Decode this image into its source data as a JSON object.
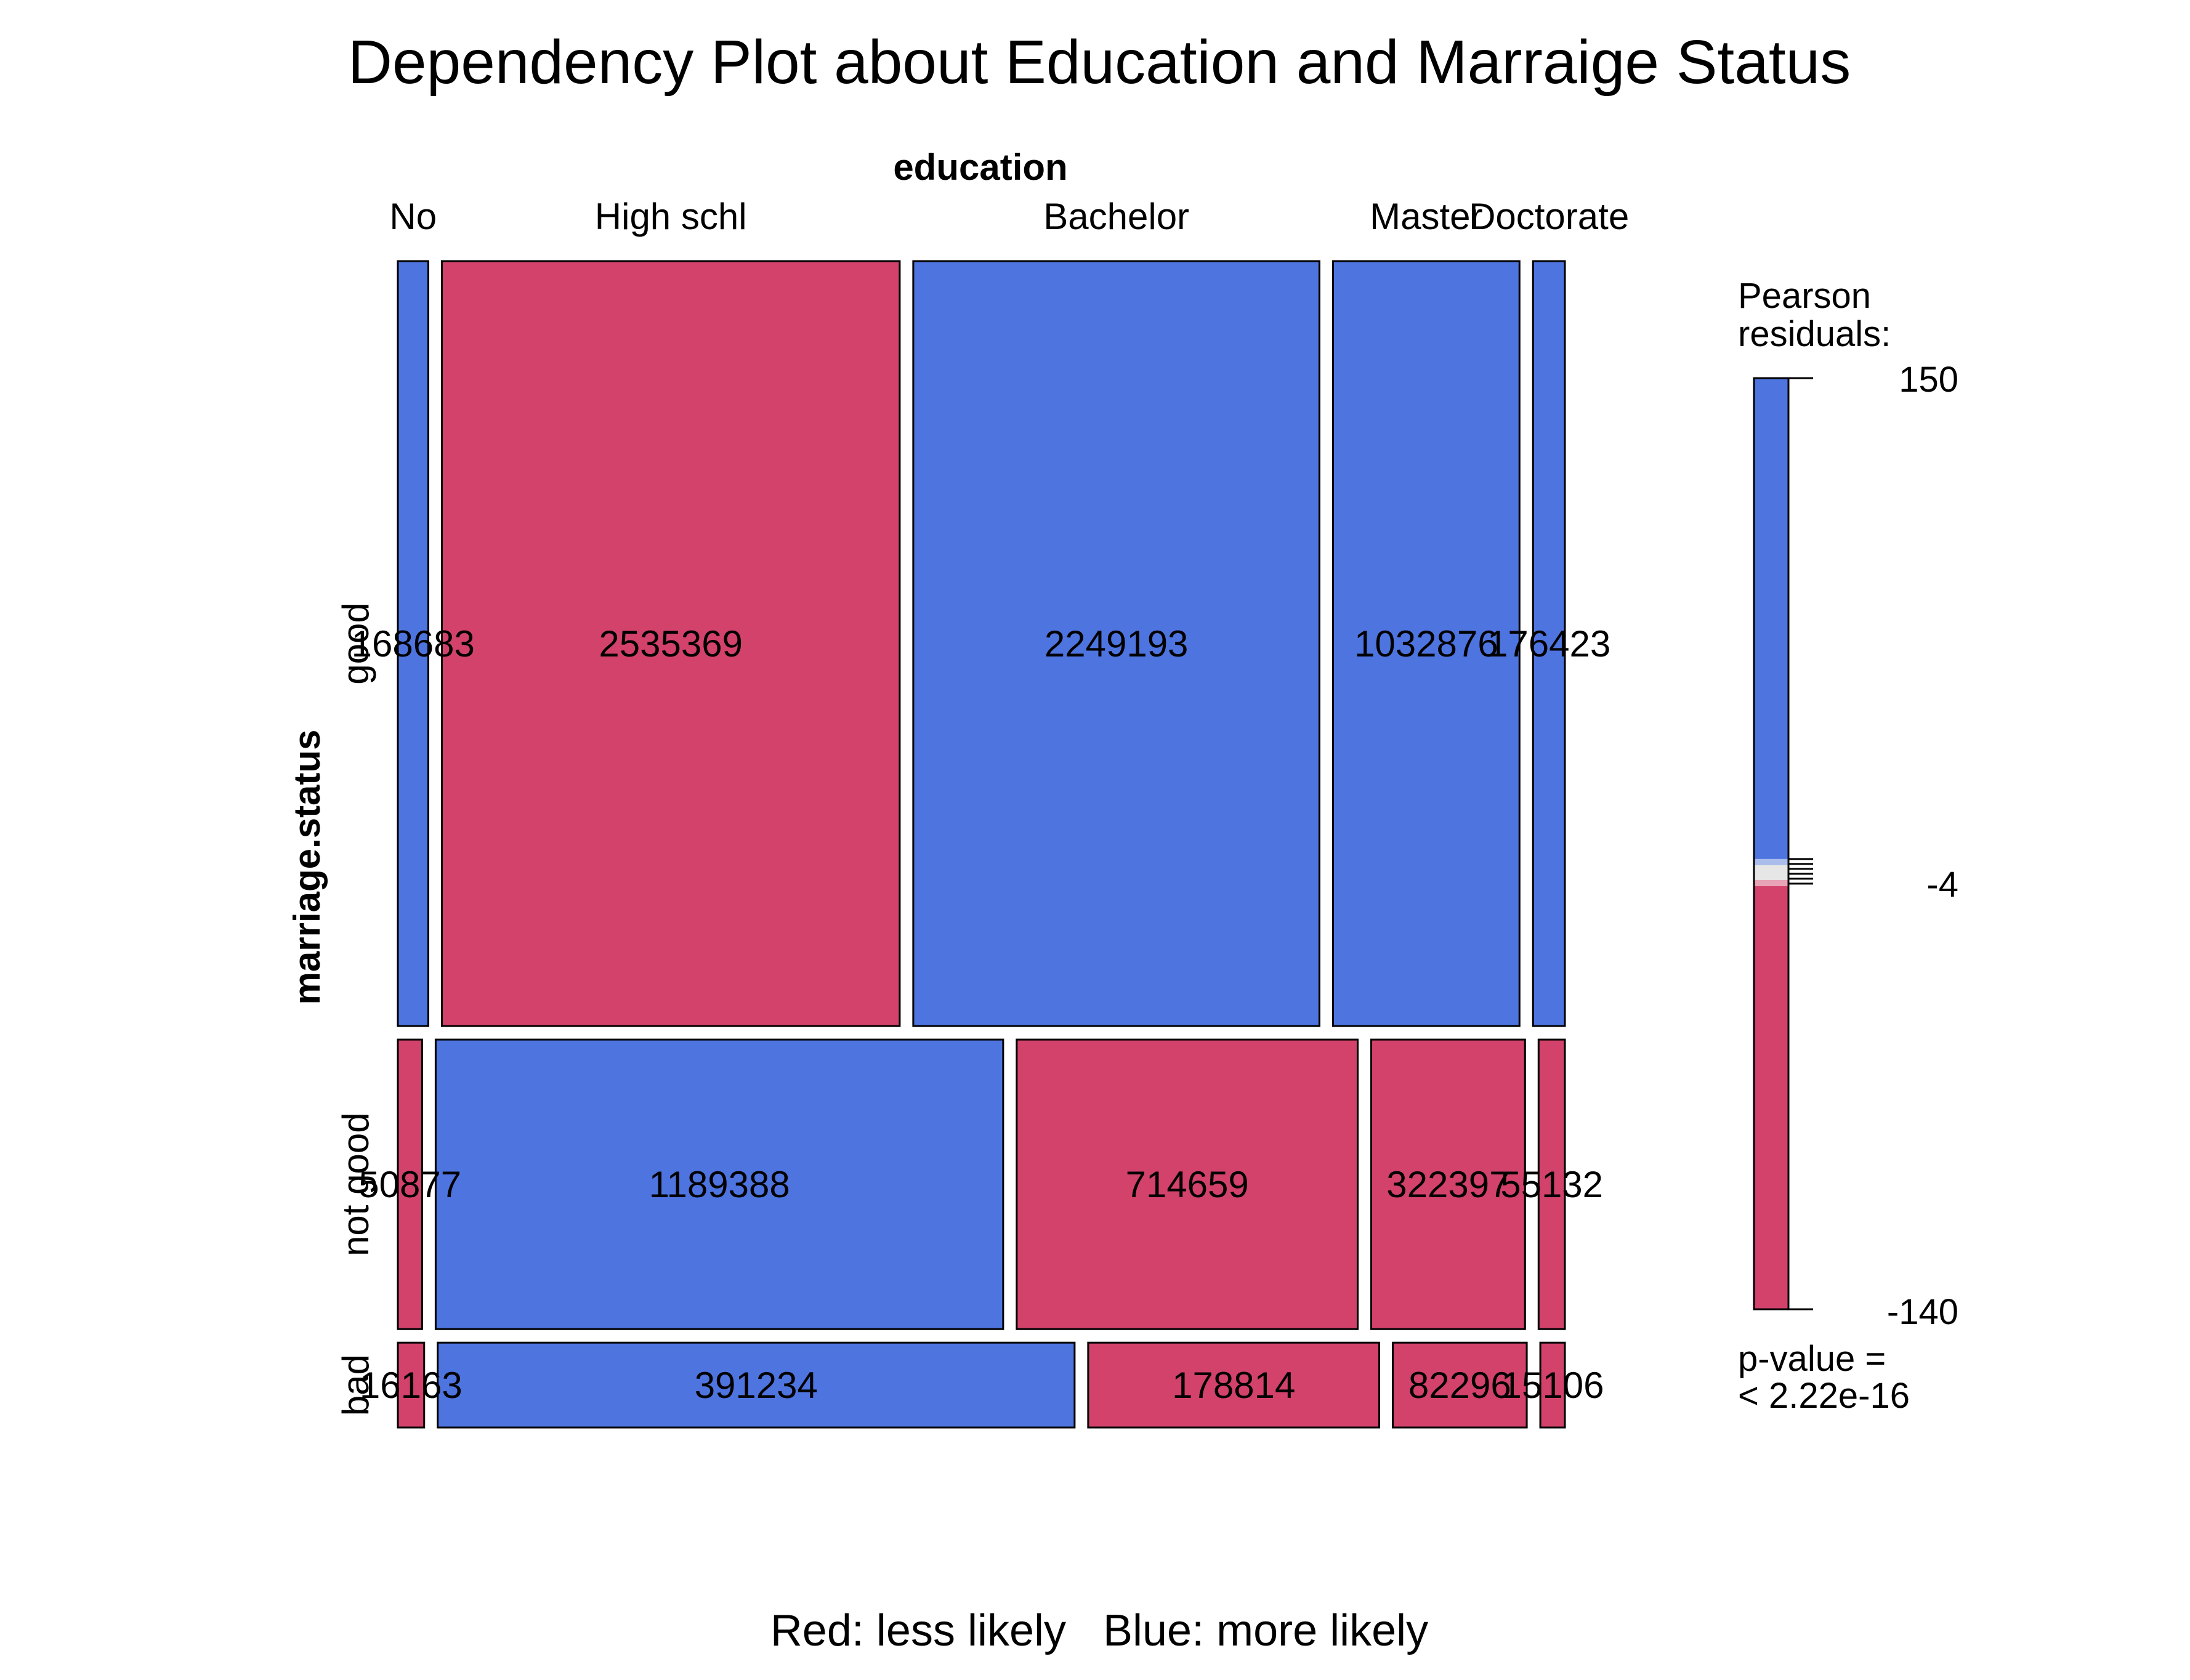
{
  "chart_data": {
    "type": "mosaic",
    "title": "Dependency Plot about Education and Marraige Status",
    "x_variable": "education",
    "y_variable": "marriage.status",
    "x_categories": [
      "No",
      "High schl",
      "Bachelor",
      "Master",
      "Doctorate"
    ],
    "y_categories": [
      "good",
      "not good",
      "bad"
    ],
    "counts": [
      [
        168683,
        2535369,
        2249193,
        1032876,
        176423
      ],
      [
        50877,
        1189388,
        714659,
        322397,
        55132
      ],
      [
        16163,
        391234,
        178814,
        82296,
        15106
      ]
    ],
    "count_labels": [
      [
        "168683",
        "2535369",
        "2249193",
        "1032876",
        "176423"
      ],
      [
        "50877",
        "1189388",
        "714659",
        "322397",
        "55132"
      ],
      [
        "16163",
        "391234",
        "178814",
        "82296",
        "15106"
      ]
    ],
    "residual_sign": [
      [
        "positive",
        "negative",
        "positive",
        "positive",
        "positive"
      ],
      [
        "negative",
        "positive",
        "negative",
        "negative",
        "negative"
      ],
      [
        "negative",
        "positive",
        "negative",
        "negative",
        "negative"
      ]
    ],
    "colors": {
      "positive": "#4E74E0",
      "negative": "#D2426B",
      "neutral": "#E6E6E6",
      "outline": "#000000"
    },
    "legend": {
      "title_line1": "Pearson",
      "title_line2": "residuals:",
      "max_label": "150",
      "mid_label": "-4",
      "min_label": "-140",
      "max": 150,
      "mid": -4,
      "min": -140,
      "pvalue_line1": "p-value =",
      "pvalue_line2": "< 2.22e-16"
    },
    "footer": "Red: less likely   Blue: more likely"
  }
}
